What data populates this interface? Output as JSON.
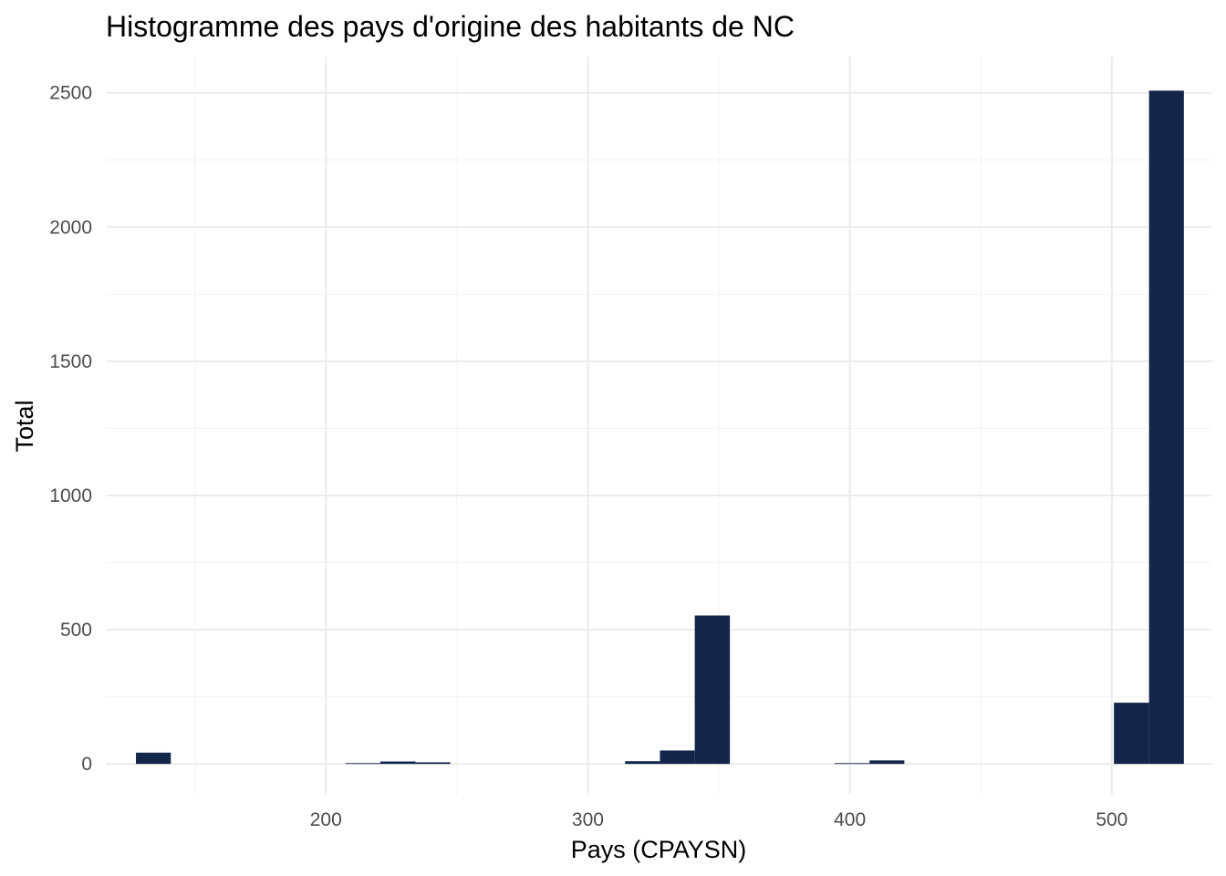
{
  "chart_data": {
    "type": "bar",
    "title": "Histogramme des pays d'origine des habitants de NC",
    "xlabel": "Pays (CPAYSN)",
    "ylabel": "Total",
    "xlim": [
      116,
      538
    ],
    "ylim": [
      -115,
      2635
    ],
    "x_ticks": [
      200,
      300,
      400,
      500
    ],
    "x_ticks_minor": [
      150,
      250,
      350,
      450
    ],
    "y_ticks": [
      0,
      500,
      1000,
      1500,
      2000,
      2500
    ],
    "y_ticks_minor": [
      250,
      750,
      1250,
      1750,
      2250
    ],
    "grid": true,
    "bar_color": "#13254a",
    "bins": [
      {
        "x0": 127.5,
        "x1": 140.8,
        "value": 42
      },
      {
        "x0": 207.5,
        "x1": 220.8,
        "value": 3
      },
      {
        "x0": 220.8,
        "x1": 234.2,
        "value": 9
      },
      {
        "x0": 234.2,
        "x1": 247.5,
        "value": 6
      },
      {
        "x0": 314.2,
        "x1": 327.5,
        "value": 10
      },
      {
        "x0": 327.5,
        "x1": 340.8,
        "value": 50
      },
      {
        "x0": 340.8,
        "x1": 354.2,
        "value": 553
      },
      {
        "x0": 394.2,
        "x1": 407.5,
        "value": 3
      },
      {
        "x0": 407.5,
        "x1": 420.8,
        "value": 13
      },
      {
        "x0": 500.8,
        "x1": 514.2,
        "value": 228
      },
      {
        "x0": 514.2,
        "x1": 527.5,
        "value": 2508
      }
    ]
  }
}
